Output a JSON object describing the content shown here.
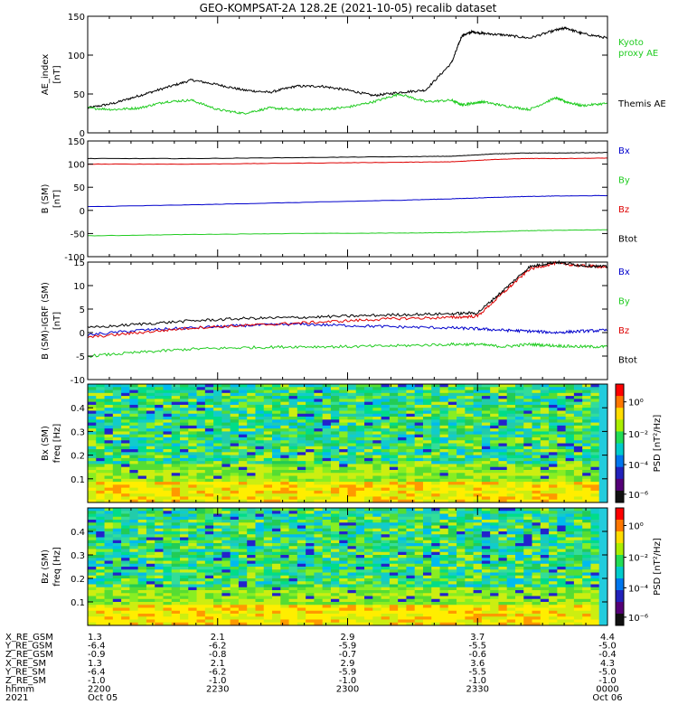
{
  "title": "GEO-KOMPSAT-2A 128.2E (2021-10-05) recalib dataset",
  "colors": {
    "black": "#000000",
    "red": "#dd0000",
    "blue": "#0000cc",
    "green": "#22cc22",
    "axis": "#000000"
  },
  "chart_data": [
    {
      "id": "ae",
      "type": "line",
      "ylabel": [
        "AE_index",
        "[nT]"
      ],
      "ylim": [
        0,
        150
      ],
      "yticks": [
        0,
        50,
        100,
        150
      ],
      "x": [
        0,
        0.05,
        0.1,
        0.15,
        0.2,
        0.25,
        0.3,
        0.35,
        0.4,
        0.45,
        0.5,
        0.55,
        0.6,
        0.65,
        0.7,
        0.72,
        0.74,
        0.76,
        0.8,
        0.85,
        0.9,
        0.92,
        0.95,
        1.0
      ],
      "series": [
        {
          "name": "Themis AE",
          "color": "green_label_black",
          "values": [
            32,
            38,
            48,
            58,
            68,
            62,
            55,
            52,
            60,
            60,
            55,
            48,
            52,
            55,
            90,
            125,
            130,
            128,
            126,
            122,
            132,
            135,
            128,
            122
          ]
        },
        {
          "name": "Kyoto proxy AE",
          "values": [
            32,
            30,
            32,
            40,
            42,
            30,
            25,
            32,
            30,
            30,
            33,
            40,
            50,
            40,
            42,
            36,
            38,
            40,
            35,
            30,
            45,
            40,
            35,
            38
          ]
        }
      ],
      "legend": [
        "Kyoto",
        "proxy AE",
        "Themis AE"
      ]
    },
    {
      "id": "b_sm",
      "type": "line",
      "ylabel": [
        "B (SM)",
        "[nT]"
      ],
      "ylim": [
        -100,
        150
      ],
      "yticks": [
        -100,
        -50,
        0,
        50,
        100,
        150
      ],
      "x": [
        0,
        0.2,
        0.4,
        0.6,
        0.7,
        0.78,
        0.84,
        0.9,
        1.0
      ],
      "series": [
        {
          "name": "Bx",
          "values": [
            8,
            12,
            17,
            22,
            25,
            28,
            30,
            31,
            32
          ]
        },
        {
          "name": "By",
          "values": [
            -55,
            -52,
            -50,
            -49,
            -48,
            -46,
            -44,
            -43,
            -42
          ]
        },
        {
          "name": "Bz",
          "values": [
            100,
            100,
            102,
            104,
            105,
            110,
            112,
            112,
            113
          ]
        },
        {
          "name": "Btot",
          "values": [
            112,
            112,
            114,
            116,
            117,
            122,
            124,
            124,
            125
          ]
        }
      ],
      "legend": [
        "Bx",
        "By",
        "Bz",
        "Btot"
      ]
    },
    {
      "id": "b_minus_igrf",
      "type": "line",
      "ylabel": [
        "B (SM)-IGRF (SM)",
        "[nT]"
      ],
      "ylim": [
        -10,
        15
      ],
      "yticks": [
        -10,
        -5,
        0,
        5,
        10,
        15
      ],
      "x": [
        0,
        0.1,
        0.2,
        0.3,
        0.4,
        0.5,
        0.6,
        0.7,
        0.75,
        0.8,
        0.85,
        0.9,
        0.95,
        1.0
      ],
      "series": [
        {
          "name": "Bx",
          "values": [
            -0.5,
            0.5,
            1.0,
            1.5,
            1.8,
            1.5,
            1.2,
            1.0,
            0.8,
            0.5,
            0.3,
            0.0,
            0.3,
            0.5
          ]
        },
        {
          "name": "By",
          "values": [
            -5,
            -4.2,
            -3.5,
            -3.2,
            -3.0,
            -3.0,
            -2.8,
            -2.5,
            -2.5,
            -3.0,
            -2.5,
            -2.8,
            -3.0,
            -3.0
          ]
        },
        {
          "name": "Bz",
          "values": [
            -1.0,
            0.0,
            1.0,
            1.5,
            2.0,
            2.5,
            3.0,
            3.2,
            3.5,
            8.5,
            13.5,
            14.8,
            14.2,
            14.0
          ]
        },
        {
          "name": "Btot",
          "values": [
            1.0,
            1.8,
            2.5,
            3.0,
            3.2,
            3.5,
            3.8,
            4.0,
            4.2,
            9.0,
            14.0,
            15.0,
            14.3,
            14.0
          ]
        }
      ],
      "legend": [
        "Bx",
        "By",
        "Bz",
        "Btot"
      ]
    },
    {
      "id": "bx_spec",
      "type": "heatmap",
      "ylabel": [
        "Bx (SM)",
        "freq [Hz]"
      ],
      "ylim": [
        0,
        0.5
      ],
      "yticks": [
        0.1,
        0.2,
        0.3,
        0.4
      ],
      "colorbar": {
        "label": "PSD [nT²/Hz]",
        "ticks": [
          "10⁰",
          "10⁻²",
          "10⁻⁴",
          "10⁻⁶"
        ]
      }
    },
    {
      "id": "bz_spec",
      "type": "heatmap",
      "ylabel": [
        "Bz (SM)",
        "freq [Hz]"
      ],
      "ylim": [
        0,
        0.5
      ],
      "yticks": [
        0.1,
        0.2,
        0.3,
        0.4
      ],
      "colorbar": {
        "label": "PSD [nT²/Hz]",
        "ticks": [
          "10⁰",
          "10⁻²",
          "10⁻⁴",
          "10⁻⁶"
        ]
      }
    }
  ],
  "ephemeris": {
    "row_labels": [
      "X_RE_GSM",
      "Y_RE_GSM",
      "Z_RE_GSM",
      "X_RE_SM",
      "Y_RE_SM",
      "Z_RE_SM",
      "hhmm",
      "2021"
    ],
    "columns": [
      {
        "x": 0.0,
        "values": [
          "1.3",
          "-6.4",
          "-0.9",
          "1.3",
          "-6.4",
          "-1.0",
          "2200",
          "Oct 05"
        ]
      },
      {
        "x": 0.25,
        "values": [
          "2.1",
          "-6.2",
          "-0.8",
          "2.1",
          "-6.2",
          "-1.0",
          "2230",
          ""
        ]
      },
      {
        "x": 0.5,
        "values": [
          "2.9",
          "-5.9",
          "-0.7",
          "2.9",
          "-5.9",
          "-1.0",
          "2300",
          ""
        ]
      },
      {
        "x": 0.75,
        "values": [
          "3.7",
          "-5.5",
          "-0.6",
          "3.6",
          "-5.5",
          "-1.0",
          "2330",
          ""
        ]
      },
      {
        "x": 1.0,
        "values": [
          "4.4",
          "-5.0",
          "-0.4",
          "4.3",
          "-5.0",
          "-1.0",
          "0000",
          "Oct 06"
        ]
      }
    ]
  }
}
